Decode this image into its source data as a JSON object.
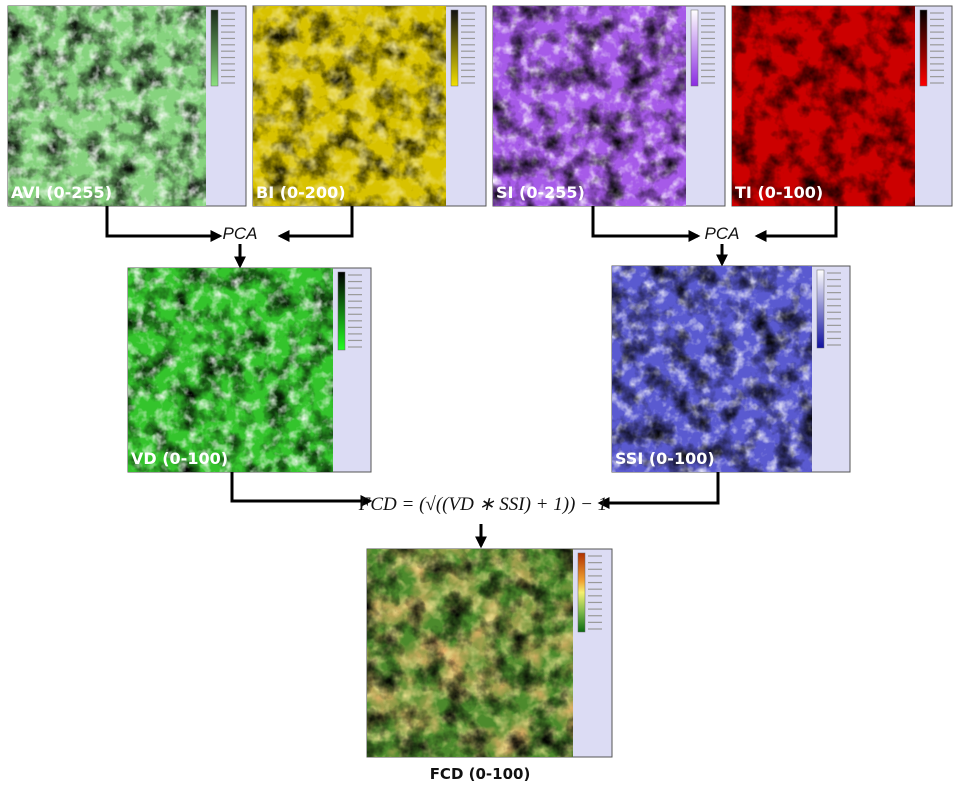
{
  "panels": [
    {
      "label": "AVI (0-255)"
    },
    {
      "label": "BI (0-200)"
    },
    {
      "label": "SI (0-255)"
    },
    {
      "label": "TI (0-100)"
    },
    {
      "label": "VD (0-100)"
    },
    {
      "label": "SSI (0-100)"
    },
    {
      "label": "FCD (0-100)"
    }
  ],
  "operations": [
    {
      "label": "PCA"
    },
    {
      "label": "PCA"
    }
  ],
  "formula": "FCD = (√((VD ∗ SSI) + 1)) − 1"
}
